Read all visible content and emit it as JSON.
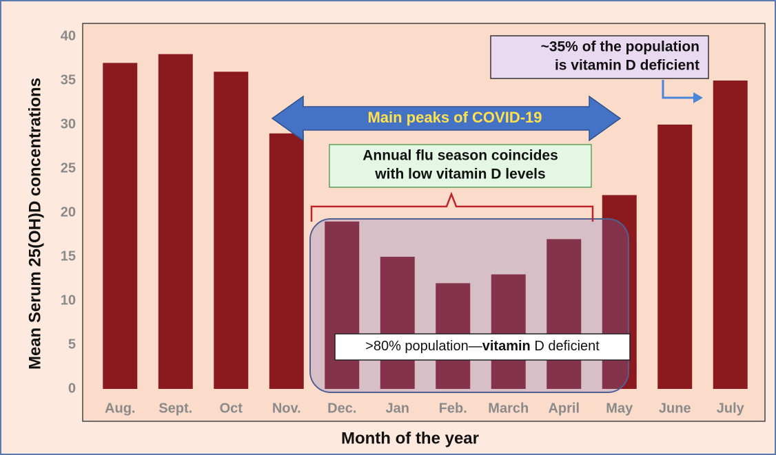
{
  "chart_data": {
    "type": "bar",
    "categories": [
      "Aug.",
      "Sept.",
      "Oct",
      "Nov.",
      "Dec.",
      "Jan",
      "Feb.",
      "March",
      "April",
      "May",
      "June",
      "July"
    ],
    "values": [
      37,
      38,
      36,
      29,
      19,
      15,
      12,
      13,
      17,
      22,
      30,
      35
    ],
    "color": "#8b1a1e",
    "ylim": [
      0,
      40
    ],
    "yticks": [
      0,
      5,
      10,
      15,
      20,
      25,
      30,
      35,
      40
    ],
    "grid": false,
    "y_label": "Mean Serum 25(OH)D concentrations",
    "x_label": "Month of the year",
    "annotations": {
      "covid": "Main peaks of COVID-19",
      "flu": [
        "Annual flu season coincides",
        "with low vitamin D levels"
      ],
      "population": [
        "~35% of the population",
        "is vitamin D deficient"
      ],
      "winter": [
        ">80% population—",
        "vitamin",
        " D deficient"
      ]
    }
  }
}
